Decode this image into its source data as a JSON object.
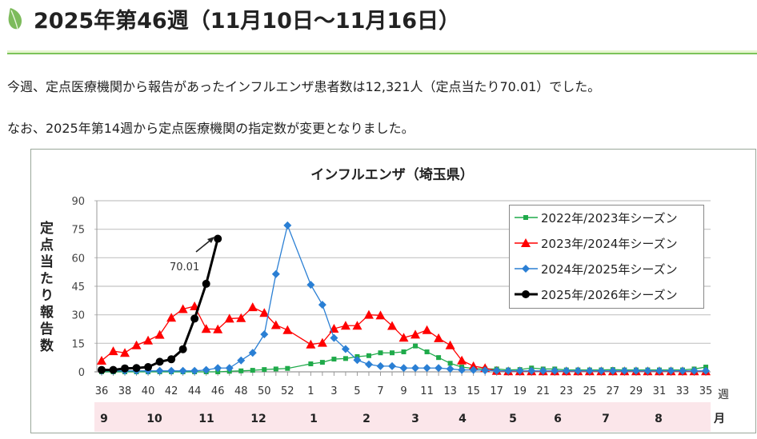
{
  "header": {
    "title": "2025年第46週（11月10日～11月16日）",
    "icon": "leaf-icon"
  },
  "paragraphs": [
    "今週、定点医療機関から報告があったインフルエンザ患者数は12,321人（定点当たり70.01）でした。",
    "なお、2025年第14週から定点医療機関の指定数が変更となりました。"
  ],
  "chart_data": {
    "type": "line",
    "title": "インフルエンザ（埼玉県）",
    "ylabel": "定点当たり報告数",
    "xlabel": "週",
    "month_label": "月",
    "ylim": [
      0,
      90
    ],
    "yticks": [
      0,
      15,
      30,
      45,
      60,
      75,
      90
    ],
    "grid": true,
    "legend_position": "top-right",
    "weeks": [
      36,
      37,
      38,
      39,
      40,
      41,
      42,
      43,
      44,
      45,
      46,
      47,
      48,
      49,
      50,
      51,
      52,
      53,
      1,
      2,
      3,
      4,
      5,
      6,
      7,
      8,
      9,
      10,
      11,
      12,
      13,
      14,
      15,
      16,
      17,
      18,
      19,
      20,
      21,
      22,
      23,
      24,
      25,
      26,
      27,
      28,
      29,
      30,
      31,
      32,
      33,
      34,
      35
    ],
    "xtick_labels": [
      "36",
      "38",
      "40",
      "42",
      "44",
      "46",
      "48",
      "50",
      "52",
      "1",
      "3",
      "5",
      "7",
      "9",
      "11",
      "13",
      "15",
      "17",
      "19",
      "21",
      "23",
      "25",
      "27",
      "29",
      "31",
      "33",
      "35"
    ],
    "months": [
      "9",
      "10",
      "11",
      "12",
      "1",
      "2",
      "3",
      "4",
      "5",
      "6",
      "7",
      "8"
    ],
    "annotation": "70.01",
    "series": [
      {
        "name": "2022年/2023年シーズン",
        "color": "#1faa4a",
        "marker": "square",
        "values": [
          0,
          0,
          0,
          0,
          0,
          0,
          0,
          0,
          0,
          0,
          0,
          0.3,
          0.5,
          0.8,
          1.2,
          1.5,
          1.8,
          null,
          4.2,
          5,
          6.7,
          7,
          8,
          8.5,
          10,
          10,
          10.5,
          13.6,
          10.5,
          7.5,
          4.5,
          2.5,
          1.8,
          1.5,
          1.5,
          1,
          1.2,
          2,
          1.5,
          1.5,
          1,
          1,
          1,
          1,
          1.2,
          1,
          1,
          1,
          1,
          1,
          1,
          1.5,
          2.5
        ]
      },
      {
        "name": "2023年/2024年シーズン",
        "color": "#ff0000",
        "marker": "triangle",
        "values": [
          5.9,
          10.9,
          10,
          14,
          16.5,
          19.5,
          28.5,
          33,
          34.5,
          22.6,
          22.4,
          28,
          28.3,
          34,
          31,
          24.6,
          22,
          null,
          14.4,
          15.3,
          22.7,
          24.3,
          24.3,
          30,
          29.7,
          24.2,
          18,
          19.6,
          22,
          17.7,
          14,
          6,
          3,
          2,
          0.5,
          0.3,
          0.3,
          0.3,
          0.3,
          0.3,
          0.3,
          0.3,
          0.3,
          0.3,
          0.3,
          0.3,
          0.3,
          0.3,
          0.3,
          0.3,
          0.3,
          0.3,
          0.3
        ]
      },
      {
        "name": "2024年/2025年シーズン",
        "color": "#2a7fd4",
        "marker": "diamond",
        "values": [
          0.5,
          0.5,
          0.5,
          0.5,
          0.5,
          0.5,
          0.5,
          0.5,
          0.5,
          1,
          2,
          2,
          6,
          10,
          19.7,
          51.4,
          77,
          null,
          45.8,
          35.3,
          17.8,
          12,
          6.2,
          3.9,
          3,
          3,
          2,
          2,
          2,
          2,
          1.5,
          1,
          1,
          0.8,
          0.6,
          0.5,
          0.5,
          0.5,
          0.5,
          0.5,
          0.5,
          0.5,
          0.5,
          0.5,
          0.5,
          0.5,
          0.5,
          0.5,
          0.5,
          0.5,
          0.5,
          0.5,
          0.5
        ]
      },
      {
        "name": "2025年/2026年シーズン",
        "color": "#000000",
        "marker": "circle",
        "values": [
          1,
          1,
          1.8,
          2,
          2.5,
          5.3,
          6.6,
          11.9,
          28,
          46.3,
          70.01
        ]
      }
    ]
  }
}
